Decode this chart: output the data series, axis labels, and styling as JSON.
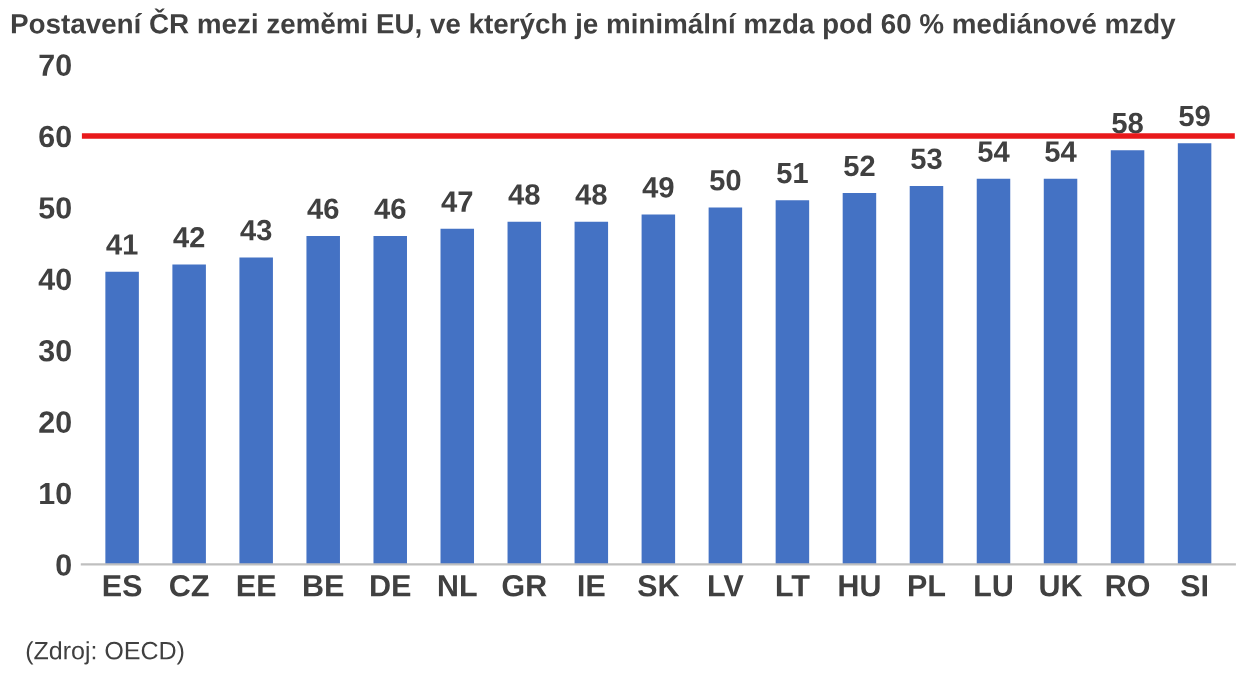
{
  "chart_data": {
    "type": "bar",
    "title": "Postavení ČR mezi zeměmi EU, ve kterých je minimální mzda pod 60 % mediánové mzdy",
    "categories": [
      "ES",
      "CZ",
      "EE",
      "BE",
      "DE",
      "NL",
      "GR",
      "IE",
      "SK",
      "LV",
      "LT",
      "HU",
      "PL",
      "LU",
      "UK",
      "RO",
      "SI"
    ],
    "values": [
      41,
      42,
      43,
      46,
      46,
      47,
      48,
      48,
      49,
      50,
      51,
      52,
      53,
      54,
      54,
      58,
      59
    ],
    "color": "#4472c4",
    "ylim": [
      0,
      70
    ],
    "yticks": [
      0,
      10,
      20,
      30,
      40,
      50,
      60,
      70
    ],
    "ref_lines": [
      {
        "axis": "y",
        "value": 60,
        "color": "#e8191b",
        "line_style": "solid"
      }
    ],
    "data_labels": true,
    "annotations": [
      "(Zdroj: OECD)"
    ]
  }
}
